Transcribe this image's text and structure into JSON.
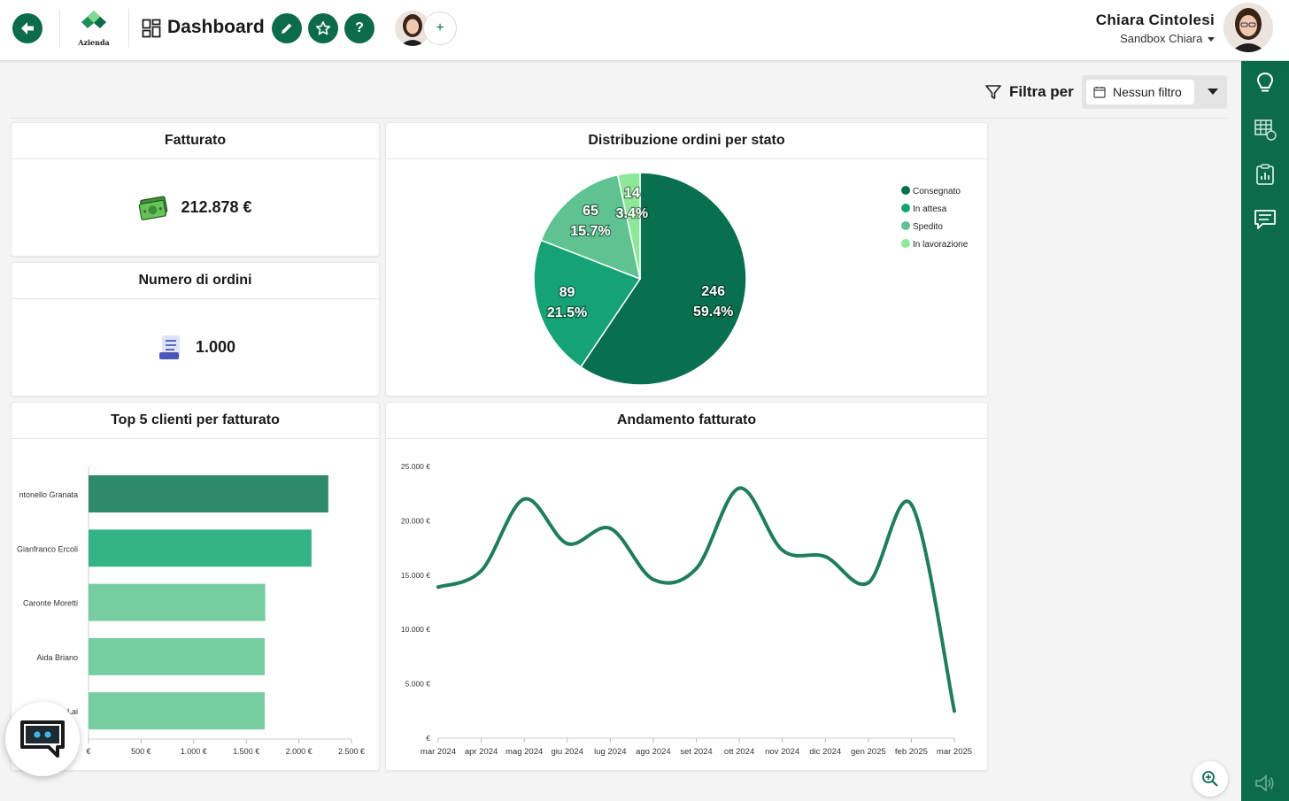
{
  "header": {
    "logo_text": "Azienda",
    "title": "Dashboard",
    "user_name": "Chiara Cintolesi",
    "workspace": "Sandbox Chiara"
  },
  "filter": {
    "label": "Filtra per",
    "value": "Nessun filtro"
  },
  "cards": {
    "revenue": {
      "title": "Fatturato",
      "value": "212.878 €"
    },
    "orders": {
      "title": "Numero di ordini",
      "value": "1.000"
    },
    "pie": {
      "title": "Distribuzione ordini per stato"
    },
    "top_clients": {
      "title": "Top 5 clienti per fatturato"
    },
    "trend": {
      "title": "Andamento fatturato"
    }
  },
  "chart_data": [
    {
      "type": "pie",
      "title": "Distribuzione ordini per stato",
      "categories": [
        "Consegnato",
        "In attesa",
        "Spedito",
        "In lavorazione"
      ],
      "values": [
        246,
        89,
        65,
        14
      ],
      "labels": [
        "59.4%",
        "21.5%",
        "15.7%",
        "3.4%"
      ],
      "colors": [
        "#08704f",
        "#15a274",
        "#5ec390",
        "#8de89a"
      ],
      "legend": "right"
    },
    {
      "type": "bar",
      "orientation": "horizontal",
      "title": "Top 5 clienti per fatturato",
      "categories": [
        "ntonello Granata",
        "Gianfranco Ercoli",
        "Caronte Moretti",
        "Aida Briano",
        "Lai"
      ],
      "values": [
        2280,
        2120,
        1680,
        1675,
        1675
      ],
      "colors": [
        "#2e8a6a",
        "#34b387",
        "#76cea0",
        "#76cea0",
        "#76cea0"
      ],
      "xticks": [
        "€",
        "500 €",
        "1.000 €",
        "1.500 €",
        "2.000 €",
        "2.500 €"
      ],
      "xlim": [
        0,
        2500
      ]
    },
    {
      "type": "line",
      "title": "Andamento fatturato",
      "x": [
        "mar 2024",
        "apr 2024",
        "mag 2024",
        "giu 2024",
        "lug 2024",
        "ago 2024",
        "set 2024",
        "ott 2024",
        "nov 2024",
        "dic 2024",
        "gen 2025",
        "feb 2025",
        "mar 2025"
      ],
      "values": [
        13900,
        15400,
        22000,
        17900,
        19300,
        14600,
        15600,
        23000,
        17300,
        16700,
        14300,
        21500,
        2500
      ],
      "yticks": [
        "€",
        "5.000 €",
        "10.000 €",
        "15.000 €",
        "20.000 €",
        "25.000 €"
      ],
      "ylim": [
        0,
        25000
      ],
      "color": "#1f7d5a"
    }
  ]
}
